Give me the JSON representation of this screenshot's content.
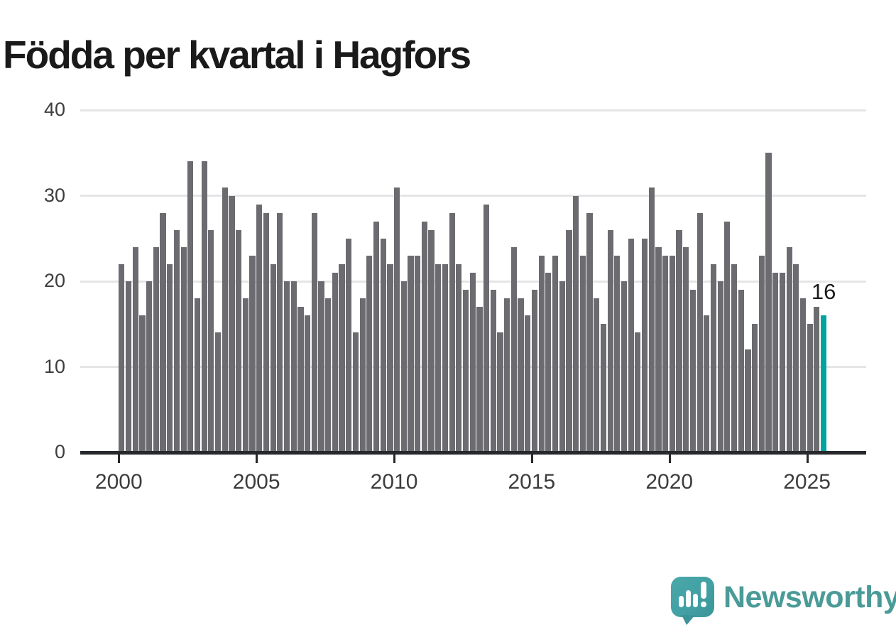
{
  "title": "Födda per kvartal i Hagfors",
  "chart_data": {
    "type": "bar",
    "title": "Födda per kvartal i Hagfors",
    "frequency": "quarterly",
    "x_start": "2000-Q1",
    "x_end": "2025-Q3",
    "values": [
      22,
      20,
      24,
      16,
      20,
      24,
      28,
      22,
      26,
      24,
      34,
      18,
      34,
      26,
      14,
      31,
      30,
      26,
      18,
      23,
      29,
      28,
      22,
      28,
      20,
      20,
      17,
      16,
      28,
      20,
      18,
      21,
      22,
      25,
      14,
      18,
      23,
      27,
      25,
      22,
      31,
      20,
      23,
      23,
      27,
      26,
      22,
      22,
      28,
      22,
      19,
      21,
      17,
      29,
      19,
      14,
      18,
      24,
      18,
      16,
      19,
      23,
      21,
      23,
      20,
      26,
      30,
      23,
      28,
      18,
      15,
      26,
      23,
      20,
      25,
      14,
      25,
      31,
      24,
      23,
      23,
      26,
      24,
      19,
      28,
      16,
      22,
      20,
      27,
      22,
      19,
      12,
      15,
      23,
      35,
      21,
      21,
      24,
      22,
      18,
      15,
      17,
      16
    ],
    "highlight_last_value": 16,
    "ylim": [
      0,
      40
    ],
    "yticks": [
      0,
      10,
      20,
      30,
      40
    ],
    "xtick_years": [
      2000,
      2005,
      2010,
      2015,
      2020,
      2025
    ],
    "grid": true,
    "legend": false,
    "bar_color": "#6b6b70",
    "highlight_color": "#00a39e",
    "annotation_label": "16"
  },
  "annotation": {
    "label": "16"
  },
  "branding": {
    "wordmark": "Newsworthy"
  }
}
